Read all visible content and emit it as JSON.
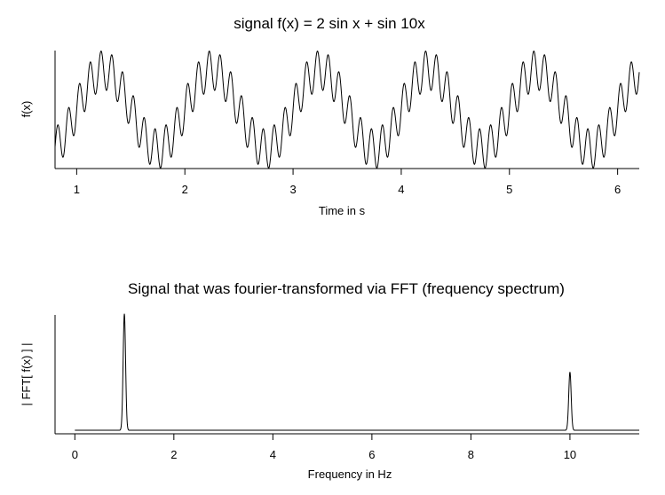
{
  "chart_data": [
    {
      "type": "line",
      "title": "signal f(x) = 2 sin x  +  sin 10x",
      "xlabel": "Time in s",
      "ylabel": "f(x)",
      "xlim": [
        0.8,
        6.2
      ],
      "ylim": [
        -3,
        3
      ],
      "x_ticks": [
        1,
        2,
        3,
        4,
        5,
        6
      ],
      "y_ticks": [],
      "grid": false,
      "series": [
        {
          "expression": "2*sin(2*pi*1*t) + sin(2*pi*10*t)",
          "components": [
            {
              "amplitude": 2,
              "frequency_hz": 1
            },
            {
              "amplitude": 1,
              "frequency_hz": 10
            }
          ],
          "x_range": [
            0.8,
            6.2
          ]
        }
      ]
    },
    {
      "type": "line",
      "title": "Signal that was fourier-transformed via FFT (frequency spectrum)",
      "xlabel": "Frequency in Hz",
      "ylabel": "| FFT[ f(x) ] |",
      "xlim": [
        -0.4,
        11.4
      ],
      "ylim": [
        0,
        1.02
      ],
      "x_ticks": [
        0,
        2,
        4,
        6,
        8,
        10
      ],
      "y_ticks": [],
      "grid": false,
      "series": [
        {
          "peaks": [
            {
              "frequency_hz": 1,
              "relative_magnitude": 1.0
            },
            {
              "frequency_hz": 10,
              "relative_magnitude": 0.5
            }
          ],
          "x_range": [
            0,
            11.4
          ]
        }
      ]
    }
  ]
}
